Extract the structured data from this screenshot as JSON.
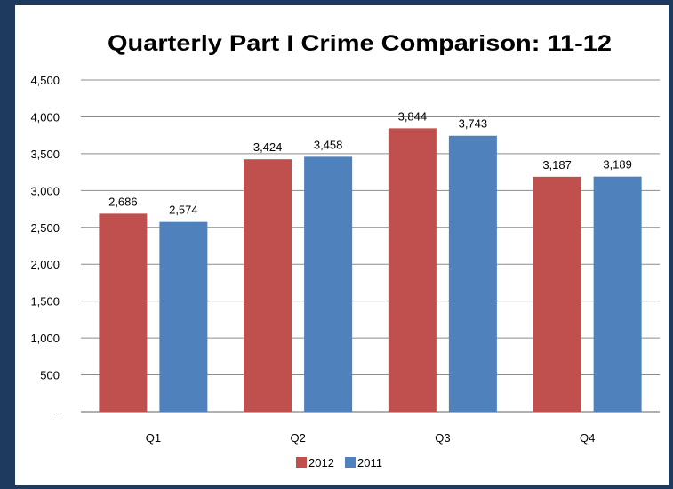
{
  "chart_data": {
    "type": "bar",
    "title": "Quarterly Part I Crime Comparison: 11-12",
    "categories": [
      "Q1",
      "Q2",
      "Q3",
      "Q4"
    ],
    "series": [
      {
        "name": "2012",
        "color": "#c0504d",
        "values": [
          2686,
          3424,
          3844,
          3187
        ],
        "labels": [
          "2,686",
          "3,424",
          "3,844",
          "3,187"
        ]
      },
      {
        "name": "2011",
        "color": "#4f81bd",
        "values": [
          2574,
          3458,
          3743,
          3189
        ],
        "labels": [
          "2,574",
          "3,458",
          "3,743",
          "3,189"
        ]
      }
    ],
    "ylim": [
      0,
      4500
    ],
    "yticks": [
      0,
      500,
      1000,
      1500,
      2000,
      2500,
      3000,
      3500,
      4000,
      4500
    ],
    "ytick_labels": [
      "-",
      "500",
      "1,000",
      "1,500",
      "2,000",
      "2,500",
      "3,000",
      "3,500",
      "4,000",
      "4,500"
    ],
    "xlabel": "",
    "ylabel": "",
    "grid": true,
    "legend_position": "bottom"
  }
}
